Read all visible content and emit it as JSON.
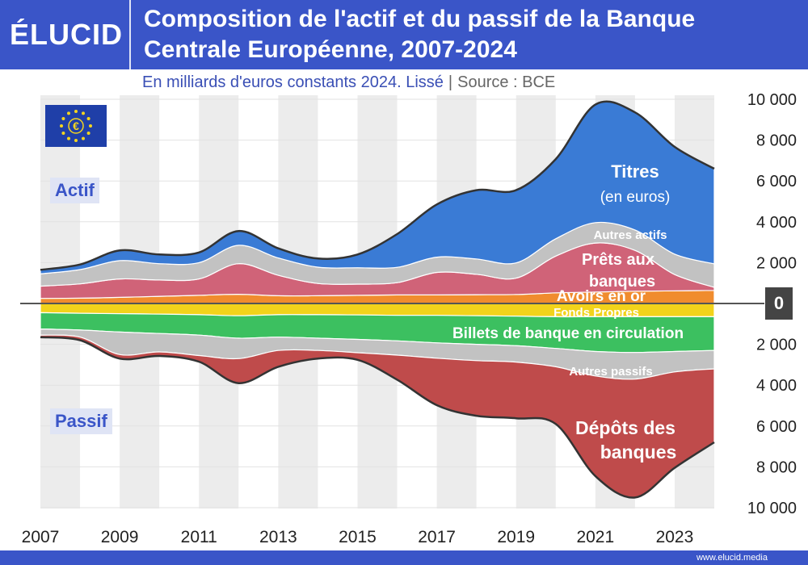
{
  "header": {
    "logo": "ÉLUCID",
    "title": "Composition de l'actif et du passif de la Banque Centrale Européenne, 2007-2024",
    "subtitle": "En milliards d'euros constants 2024. Lissé",
    "subtitle_separator": "|",
    "source": "Source : BCE"
  },
  "labels": {
    "actif": "Actif",
    "passif": "Passif",
    "zero": "0"
  },
  "footer": {
    "url": "www.elucid.media"
  },
  "colors": {
    "brand": "#3a55c8",
    "titres": "#3a7bd5",
    "autres_actifs": "#c2c2c2",
    "prets": "#d06378",
    "or": "#f08c2e",
    "fonds_propres": "#f2d31b",
    "billets": "#3cc060",
    "autres_passifs": "#c2c2c2",
    "depots": "#bf4b4b"
  },
  "chart_data": {
    "type": "area",
    "subtype": "stacked-diverging",
    "x": [
      2007,
      2008,
      2009,
      2010,
      2011,
      2012,
      2013,
      2014,
      2015,
      2016,
      2017,
      2018,
      2019,
      2020,
      2021,
      2022,
      2023,
      2024
    ],
    "x_ticks": [
      "2007",
      "2009",
      "2011",
      "2013",
      "2015",
      "2017",
      "2019",
      "2021",
      "2023"
    ],
    "y_ticks": [
      "10 000",
      "8 000",
      "6 000",
      "4 000",
      "2 000",
      "2 000",
      "4 000",
      "6 000",
      "8 000",
      "10 000"
    ],
    "ylim": [
      -10000,
      10000
    ],
    "unit": "milliards d'euros constants 2024",
    "actif_series": [
      {
        "name": "Avoirs en or",
        "label": "Avoirs en or",
        "values": [
          250,
          260,
          300,
          350,
          400,
          450,
          380,
          380,
          400,
          420,
          420,
          430,
          440,
          520,
          560,
          600,
          620,
          640
        ]
      },
      {
        "name": "Prêts aux banques",
        "label_line1": "Prêts aux",
        "label_line2": "banques",
        "values": [
          600,
          700,
          900,
          800,
          800,
          1500,
          1000,
          600,
          550,
          600,
          1100,
          1000,
          800,
          1800,
          2400,
          2000,
          800,
          150
        ]
      },
      {
        "name": "Autres actifs",
        "label": "Autres actifs",
        "values": [
          600,
          700,
          900,
          800,
          800,
          900,
          850,
          800,
          800,
          750,
          750,
          750,
          750,
          850,
          1000,
          1000,
          1000,
          1150
        ]
      },
      {
        "name": "Titres",
        "label_line1": "Titres",
        "label_line2": "(en euros)",
        "values": [
          200,
          250,
          500,
          450,
          500,
          700,
          470,
          420,
          650,
          1630,
          2580,
          3370,
          3560,
          3900,
          5780,
          5760,
          5250,
          4660
        ]
      }
    ],
    "passif_series": [
      {
        "name": "Fonds Propres",
        "label": "Fonds Propres",
        "values": [
          450,
          480,
          500,
          520,
          550,
          600,
          550,
          550,
          560,
          580,
          580,
          600,
          620,
          650,
          650,
          650,
          650,
          650
        ]
      },
      {
        "name": "Billets de banque en circulation",
        "label": "Billets de banque en circulation",
        "values": [
          800,
          820,
          900,
          950,
          1000,
          1100,
          1100,
          1150,
          1200,
          1250,
          1350,
          1400,
          1450,
          1550,
          1700,
          1750,
          1700,
          1650
        ]
      },
      {
        "name": "Autres passifs",
        "label": "Autres passifs",
        "values": [
          300,
          350,
          1100,
          900,
          1000,
          1000,
          650,
          600,
          650,
          700,
          750,
          800,
          800,
          900,
          1200,
          1300,
          1000,
          900
        ]
      },
      {
        "name": "Dépôts des banques",
        "label_line1": "Dépôts des",
        "label_line2": "banques",
        "values": [
          100,
          150,
          200,
          200,
          300,
          1200,
          800,
          400,
          350,
          1200,
          2300,
          2700,
          2750,
          2800,
          4900,
          5800,
          4700,
          3600
        ]
      }
    ]
  }
}
